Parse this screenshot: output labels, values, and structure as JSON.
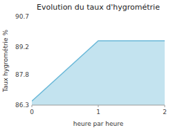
{
  "chart_data": {
    "type": "area",
    "title": "Evolution du taux d'hygrométrie",
    "xlabel": "heure par heure",
    "ylabel": "Taux hygrométrie %",
    "x": [
      0,
      1,
      2
    ],
    "values": [
      86.5,
      89.5,
      89.5
    ],
    "color": "#6ab8d8",
    "xlim": [
      0,
      2
    ],
    "ylim": [
      86.3,
      90.7
    ],
    "xticks": [
      0,
      1,
      2
    ],
    "yticks": [
      86.3,
      87.8,
      89.2,
      90.7
    ],
    "grid": false
  }
}
